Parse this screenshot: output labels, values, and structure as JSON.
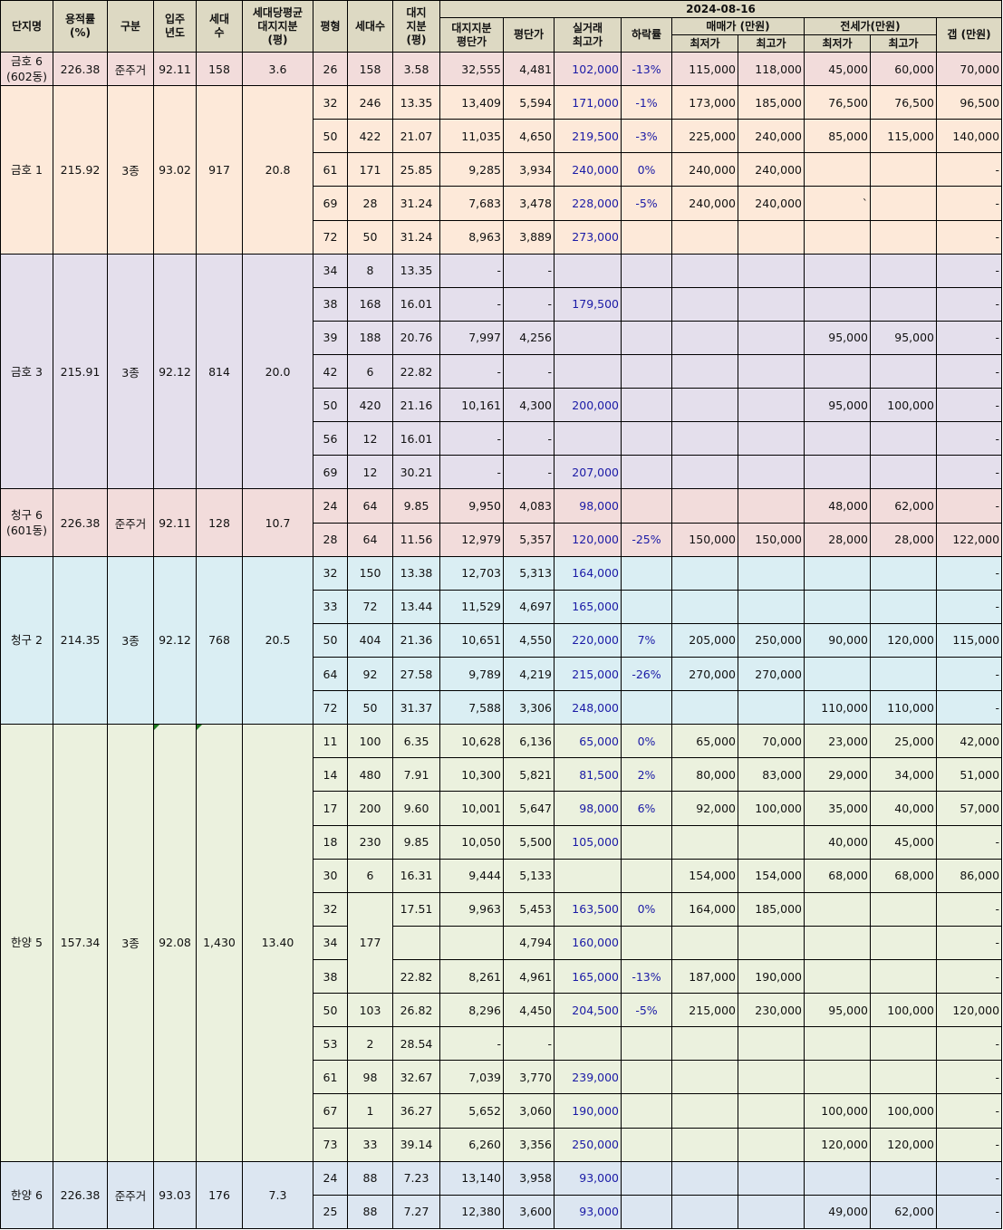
{
  "header": {
    "date": "2024-08-16",
    "complex": "단지명",
    "far": [
      "용적률",
      "(%)"
    ],
    "zone": "구분",
    "move_in": [
      "입주",
      "년도"
    ],
    "households": [
      "세대",
      "수"
    ],
    "avg_land": [
      "세대당평균",
      "대지지분",
      "(평)"
    ],
    "pyeong": "평형",
    "unit_count": "세대수",
    "land_share": [
      "대지",
      "지분",
      "(평)"
    ],
    "land_price": [
      "대지지분",
      "평단가"
    ],
    "price_per_pyeong": "평단가",
    "max_trade": [
      "실거래",
      "최고가"
    ],
    "drop_rate": "하락률",
    "sale": "매매가 (만원)",
    "jeonse": "전세가(만원)",
    "min": "최저가",
    "max": "최고가",
    "gap": "갭 (만원)"
  },
  "groups": [
    {
      "key": "geumho6",
      "name": [
        "금호 6",
        "(602동)"
      ],
      "far": "226.38",
      "zone": "준주거",
      "year": "92.11",
      "households": "158",
      "avg_land": "3.6",
      "rows": [
        {
          "py": "26",
          "cnt": "158",
          "land": "3.58",
          "lp": "32,555",
          "pp": "4,481",
          "mt": "102,000",
          "dr": "-13%",
          "smin": "115,000",
          "smax": "118,000",
          "jmin": "45,000",
          "jmax": "60,000",
          "gap": "70,000"
        }
      ]
    },
    {
      "key": "geumho1",
      "name": [
        "금호 1"
      ],
      "far": "215.92",
      "zone": "3종",
      "year": "93.02",
      "households": "917",
      "avg_land": "20.8",
      "rows": [
        {
          "py": "32",
          "cnt": "246",
          "land": "13.35",
          "lp": "13,409",
          "pp": "5,594",
          "mt": "171,000",
          "dr": "-1%",
          "smin": "173,000",
          "smax": "185,000",
          "jmin": "76,500",
          "jmax": "76,500",
          "gap": "96,500"
        },
        {
          "py": "50",
          "cnt": "422",
          "land": "21.07",
          "lp": "11,035",
          "pp": "4,650",
          "mt": "219,500",
          "dr": "-3%",
          "smin": "225,000",
          "smax": "240,000",
          "jmin": "85,000",
          "jmax": "115,000",
          "gap": "140,000"
        },
        {
          "py": "61",
          "cnt": "171",
          "land": "25.85",
          "lp": "9,285",
          "pp": "3,934",
          "mt": "240,000",
          "dr": "0%",
          "smin": "240,000",
          "smax": "240,000",
          "jmin": "",
          "jmax": "",
          "gap": "-"
        },
        {
          "py": "69",
          "cnt": "28",
          "land": "31.24",
          "lp": "7,683",
          "pp": "3,478",
          "mt": "228,000",
          "dr": "-5%",
          "smin": "240,000",
          "smax": "240,000",
          "jmin": "`",
          "jmax": "",
          "gap": "-"
        },
        {
          "py": "72",
          "cnt": "50",
          "land": "31.24",
          "lp": "8,963",
          "pp": "3,889",
          "mt": "273,000",
          "dr": "",
          "smin": "",
          "smax": "",
          "jmin": "",
          "jmax": "",
          "gap": "-"
        }
      ]
    },
    {
      "key": "geumho3",
      "name": [
        "금호 3"
      ],
      "far": "215.91",
      "zone": "3종",
      "year": "92.12",
      "households": "814",
      "avg_land": "20.0",
      "rows": [
        {
          "py": "34",
          "cnt": "8",
          "land": "13.35",
          "lp": "-",
          "pp": "-",
          "mt": "",
          "dr": "",
          "smin": "",
          "smax": "",
          "jmin": "",
          "jmax": "",
          "gap": "-"
        },
        {
          "py": "38",
          "cnt": "168",
          "land": "16.01",
          "lp": "-",
          "pp": "-",
          "mt": "179,500",
          "dr": "",
          "smin": "",
          "smax": "",
          "jmin": "",
          "jmax": "",
          "gap": "-"
        },
        {
          "py": "39",
          "cnt": "188",
          "land": "20.76",
          "lp": "7,997",
          "pp": "4,256",
          "mt": "",
          "dr": "",
          "smin": "",
          "smax": "",
          "jmin": "95,000",
          "jmax": "95,000",
          "gap": "-"
        },
        {
          "py": "42",
          "cnt": "6",
          "land": "22.82",
          "lp": "-",
          "pp": "-",
          "mt": "",
          "dr": "",
          "smin": "",
          "smax": "",
          "jmin": "",
          "jmax": "",
          "gap": "-"
        },
        {
          "py": "50",
          "cnt": "420",
          "land": "21.16",
          "lp": "10,161",
          "pp": "4,300",
          "mt": "200,000",
          "dr": "",
          "smin": "",
          "smax": "",
          "jmin": "95,000",
          "jmax": "100,000",
          "gap": "-"
        },
        {
          "py": "56",
          "cnt": "12",
          "land": "16.01",
          "lp": "-",
          "pp": "-",
          "mt": "",
          "dr": "",
          "smin": "",
          "smax": "",
          "jmin": "",
          "jmax": "",
          "gap": "-"
        },
        {
          "py": "69",
          "cnt": "12",
          "land": "30.21",
          "lp": "-",
          "pp": "-",
          "mt": "207,000",
          "dr": "",
          "smin": "",
          "smax": "",
          "jmin": "",
          "jmax": "",
          "gap": "-"
        }
      ]
    },
    {
      "key": "cheonggu6",
      "name": [
        "청구 6",
        "(601동)"
      ],
      "far": "226.38",
      "zone": "준주거",
      "year": "92.11",
      "households": "128",
      "avg_land": "10.7",
      "rows": [
        {
          "py": "24",
          "cnt": "64",
          "land": "9.85",
          "lp": "9,950",
          "pp": "4,083",
          "mt": "98,000",
          "dr": "",
          "smin": "",
          "smax": "",
          "jmin": "48,000",
          "jmax": "62,000",
          "gap": "-"
        },
        {
          "py": "28",
          "cnt": "64",
          "land": "11.56",
          "lp": "12,979",
          "pp": "5,357",
          "mt": "120,000",
          "dr": "-25%",
          "smin": "150,000",
          "smax": "150,000",
          "jmin": "28,000",
          "jmax": "28,000",
          "gap": "122,000"
        }
      ]
    },
    {
      "key": "cheonggu2",
      "name": [
        "청구 2"
      ],
      "far": "214.35",
      "zone": "3종",
      "year": "92.12",
      "households": "768",
      "avg_land": "20.5",
      "rows": [
        {
          "py": "32",
          "cnt": "150",
          "land": "13.38",
          "lp": "12,703",
          "pp": "5,313",
          "mt": "164,000",
          "dr": "",
          "smin": "",
          "smax": "",
          "jmin": "",
          "jmax": "",
          "gap": "-"
        },
        {
          "py": "33",
          "cnt": "72",
          "land": "13.44",
          "lp": "11,529",
          "pp": "4,697",
          "mt": "165,000",
          "dr": "",
          "smin": "",
          "smax": "",
          "jmin": "",
          "jmax": "",
          "gap": "-"
        },
        {
          "py": "50",
          "cnt": "404",
          "land": "21.36",
          "lp": "10,651",
          "pp": "4,550",
          "mt": "220,000",
          "dr": "7%",
          "smin": "205,000",
          "smax": "250,000",
          "jmin": "90,000",
          "jmax": "120,000",
          "gap": "115,000"
        },
        {
          "py": "64",
          "cnt": "92",
          "land": "27.58",
          "lp": "9,789",
          "pp": "4,219",
          "mt": "215,000",
          "dr": "-26%",
          "smin": "270,000",
          "smax": "270,000",
          "jmin": "",
          "jmax": "",
          "gap": "-"
        },
        {
          "py": "72",
          "cnt": "50",
          "land": "31.37",
          "lp": "7,588",
          "pp": "3,306",
          "mt": "248,000",
          "dr": "",
          "smin": "",
          "smax": "",
          "jmin": "110,000",
          "jmax": "110,000",
          "gap": "-"
        }
      ]
    },
    {
      "key": "hanyang5",
      "name": [
        "한양 5"
      ],
      "far": "157.34",
      "zone": "3종",
      "year": "92.08",
      "households": "1,430",
      "avg_land": "13.40",
      "rows": [
        {
          "py": "11",
          "cnt": "100",
          "land": "6.35",
          "lp": "10,628",
          "pp": "6,136",
          "mt": "65,000",
          "dr": "0%",
          "smin": "65,000",
          "smax": "70,000",
          "jmin": "23,000",
          "jmax": "25,000",
          "gap": "42,000"
        },
        {
          "py": "14",
          "cnt": "480",
          "land": "7.91",
          "lp": "10,300",
          "pp": "5,821",
          "mt": "81,500",
          "dr": "2%",
          "smin": "80,000",
          "smax": "83,000",
          "jmin": "29,000",
          "jmax": "34,000",
          "gap": "51,000"
        },
        {
          "py": "17",
          "cnt": "200",
          "land": "9.60",
          "lp": "10,001",
          "pp": "5,647",
          "mt": "98,000",
          "dr": "6%",
          "smin": "92,000",
          "smax": "100,000",
          "jmin": "35,000",
          "jmax": "40,000",
          "gap": "57,000"
        },
        {
          "py": "18",
          "cnt": "230",
          "land": "9.85",
          "lp": "10,050",
          "pp": "5,500",
          "mt": "105,000",
          "dr": "",
          "smin": "",
          "smax": "",
          "jmin": "40,000",
          "jmax": "45,000",
          "gap": "-"
        },
        {
          "py": "30",
          "cnt": "6",
          "land": "16.31",
          "lp": "9,444",
          "pp": "5,133",
          "mt": "",
          "dr": "",
          "smin": "154,000",
          "smax": "154,000",
          "jmin": "68,000",
          "jmax": "68,000",
          "gap": "86,000"
        },
        {
          "py": "32",
          "cnt": "177",
          "cntSpan": 3,
          "land": "17.51",
          "lp": "9,963",
          "pp": "5,453",
          "mt": "163,500",
          "dr": "0%",
          "smin": "164,000",
          "smax": "185,000",
          "jmin": "",
          "jmax": "",
          "gap": "-"
        },
        {
          "py": "34",
          "cnt": null,
          "land": "",
          "lp": "",
          "pp": "4,794",
          "mt": "160,000",
          "dr": "",
          "smin": "",
          "smax": "",
          "jmin": "",
          "jmax": "",
          "gap": "-"
        },
        {
          "py": "38",
          "cnt": null,
          "land": "22.82",
          "lp": "8,261",
          "pp": "4,961",
          "mt": "165,000",
          "dr": "-13%",
          "smin": "187,000",
          "smax": "190,000",
          "jmin": "",
          "jmax": "",
          "gap": "-"
        },
        {
          "py": "50",
          "cnt": "103",
          "land": "26.82",
          "lp": "8,296",
          "pp": "4,450",
          "mt": "204,500",
          "dr": "-5%",
          "smin": "215,000",
          "smax": "230,000",
          "jmin": "95,000",
          "jmax": "100,000",
          "gap": "120,000"
        },
        {
          "py": "53",
          "cnt": "2",
          "land": "28.54",
          "lp": "-",
          "pp": "-",
          "mt": "",
          "dr": "",
          "smin": "",
          "smax": "",
          "jmin": "",
          "jmax": "",
          "gap": "-"
        },
        {
          "py": "61",
          "cnt": "98",
          "land": "32.67",
          "lp": "7,039",
          "pp": "3,770",
          "mt": "239,000",
          "dr": "",
          "smin": "",
          "smax": "",
          "jmin": "",
          "jmax": "",
          "gap": "-"
        },
        {
          "py": "67",
          "cnt": "1",
          "land": "36.27",
          "lp": "5,652",
          "pp": "3,060",
          "mt": "190,000",
          "dr": "",
          "smin": "",
          "smax": "",
          "jmin": "100,000",
          "jmax": "100,000",
          "gap": "-"
        },
        {
          "py": "73",
          "cnt": "33",
          "land": "39.14",
          "lp": "6,260",
          "pp": "3,356",
          "mt": "250,000",
          "dr": "",
          "smin": "",
          "smax": "",
          "jmin": "120,000",
          "jmax": "120,000",
          "gap": "-"
        }
      ]
    },
    {
      "key": "hanyang6",
      "name": [
        "한양 6"
      ],
      "far": "226.38",
      "zone": "준주거",
      "year": "93.03",
      "households": "176",
      "avg_land": "7.3",
      "rows": [
        {
          "py": "24",
          "cnt": "88",
          "land": "7.23",
          "lp": "13,140",
          "pp": "3,958",
          "mt": "93,000",
          "dr": "",
          "smin": "",
          "smax": "",
          "jmin": "",
          "jmax": "",
          "gap": "-"
        },
        {
          "py": "25",
          "cnt": "88",
          "land": "7.27",
          "lp": "12,380",
          "pp": "3,600",
          "mt": "93,000",
          "dr": "",
          "smin": "",
          "smax": "",
          "jmin": "49,000",
          "jmax": "62,000",
          "gap": "-"
        }
      ]
    }
  ]
}
